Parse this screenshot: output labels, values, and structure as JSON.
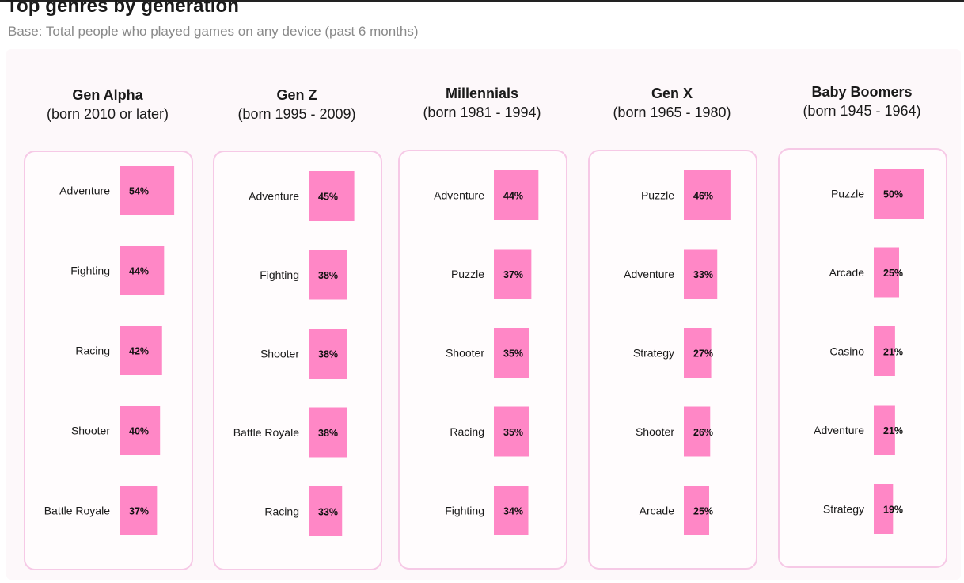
{
  "title": "Top genres by generation",
  "subtitle": "Base: Total people who played games on any device (past 6 months)",
  "colors": {
    "bar": "#ff87c6",
    "card_border": "#f6c9e6",
    "panel": "#fdf8fa"
  },
  "chart_data": [
    {
      "type": "bar",
      "title": "Gen Alpha",
      "subtitle": "(born 2010 or later)",
      "categories": [
        "Adventure",
        "Fighting",
        "Racing",
        "Shooter",
        "Battle Royale"
      ],
      "values": [
        54,
        44,
        42,
        40,
        37
      ],
      "value_labels": [
        "54%",
        "44%",
        "42%",
        "40%",
        "37%"
      ]
    },
    {
      "type": "bar",
      "title": "Gen Z",
      "subtitle": "(born 1995 - 2009)",
      "categories": [
        "Adventure",
        "Fighting",
        "Shooter",
        "Battle Royale",
        "Racing"
      ],
      "values": [
        45,
        38,
        38,
        38,
        33
      ],
      "value_labels": [
        "45%",
        "38%",
        "38%",
        "38%",
        "33%"
      ]
    },
    {
      "type": "bar",
      "title": "Millennials",
      "subtitle": "(born 1981 - 1994)",
      "categories": [
        "Adventure",
        "Puzzle",
        "Shooter",
        "Racing",
        "Fighting"
      ],
      "values": [
        44,
        37,
        35,
        35,
        34
      ],
      "value_labels": [
        "44%",
        "37%",
        "35%",
        "35%",
        "34%"
      ]
    },
    {
      "type": "bar",
      "title": "Gen X",
      "subtitle": "(born 1965 - 1980)",
      "categories": [
        "Puzzle",
        "Adventure",
        "Strategy",
        "Shooter",
        "Arcade"
      ],
      "values": [
        46,
        33,
        27,
        26,
        25
      ],
      "value_labels": [
        "46%",
        "33%",
        "27%",
        "26%",
        "25%"
      ]
    },
    {
      "type": "bar",
      "title": "Baby Boomers",
      "subtitle": "(born 1945 - 1964)",
      "categories": [
        "Puzzle",
        "Arcade",
        "Casino",
        "Adventure",
        "Strategy"
      ],
      "values": [
        50,
        25,
        21,
        21,
        19
      ],
      "value_labels": [
        "50%",
        "25%",
        "21%",
        "21%",
        "19%"
      ]
    }
  ]
}
